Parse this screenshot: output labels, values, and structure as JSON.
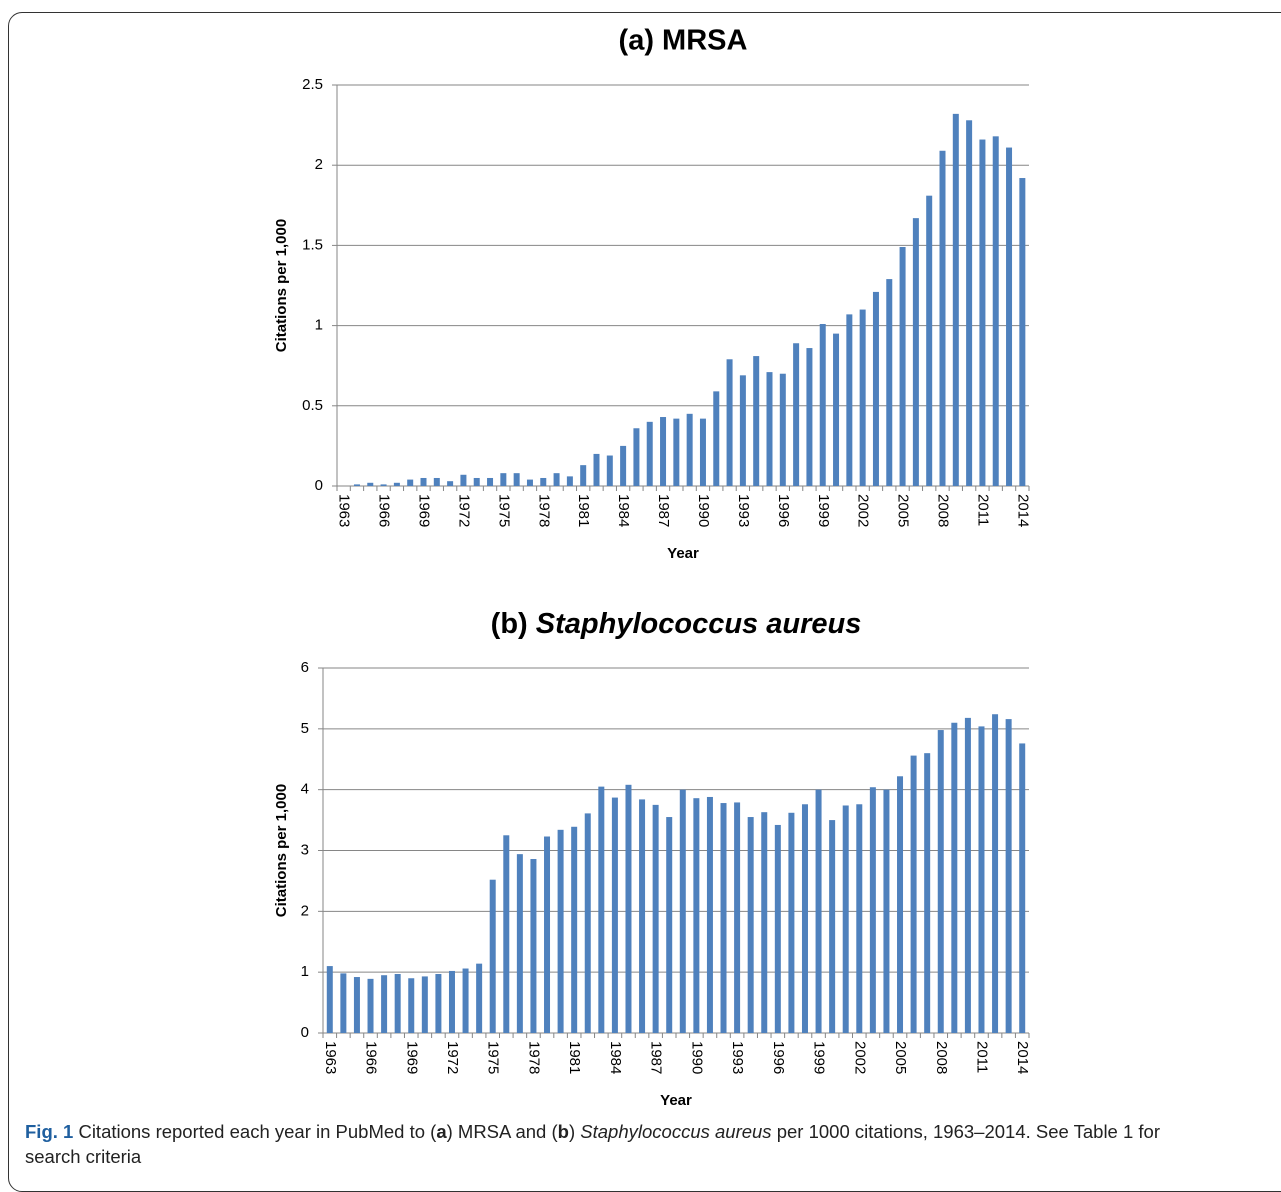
{
  "chart_data": [
    {
      "type": "bar",
      "title": "(a) MRSA",
      "x_label": "Year",
      "y_label": "Citations per 1,000",
      "color": "#4f81bd",
      "grid": true,
      "categories": [
        "1963",
        null,
        null,
        "1966",
        null,
        null,
        "1969",
        null,
        null,
        "1972",
        null,
        null,
        "1975",
        null,
        null,
        "1978",
        null,
        null,
        "1981",
        null,
        null,
        "1984",
        null,
        null,
        "1987",
        null,
        null,
        "1990",
        null,
        null,
        "1993",
        null,
        null,
        "1996",
        null,
        null,
        "1999",
        null,
        null,
        "2002",
        null,
        null,
        "2005",
        null,
        null,
        "2008",
        null,
        null,
        "2011",
        null,
        null,
        "2014"
      ],
      "values": [
        0,
        0.01,
        0.02,
        0.01,
        0.02,
        0.04,
        0.05,
        0.05,
        0.03,
        0.07,
        0.05,
        0.05,
        0.08,
        0.08,
        0.04,
        0.05,
        0.08,
        0.06,
        0.13,
        0.2,
        0.19,
        0.25,
        0.36,
        0.4,
        0.43,
        0.42,
        0.45,
        0.42,
        0.59,
        0.79,
        0.69,
        0.81,
        0.71,
        0.7,
        0.89,
        0.86,
        1.01,
        0.95,
        1.07,
        1.1,
        1.21,
        1.29,
        1.49,
        1.67,
        1.81,
        2.09,
        2.32,
        2.28,
        2.16,
        2.18,
        2.11,
        1.92
      ],
      "ylim": [
        0,
        2.5
      ],
      "yticks": [
        0,
        0.5,
        1,
        1.5,
        2,
        2.5
      ]
    },
    {
      "type": "bar",
      "title": "(b) Staphylococcus aureus",
      "x_label": "Year",
      "y_label": "Citations per 1,000",
      "color": "#4f81bd",
      "grid": true,
      "categories": [
        "1963",
        null,
        null,
        "1966",
        null,
        null,
        "1969",
        null,
        null,
        "1972",
        null,
        null,
        "1975",
        null,
        null,
        "1978",
        null,
        null,
        "1981",
        null,
        null,
        "1984",
        null,
        null,
        "1987",
        null,
        null,
        "1990",
        null,
        null,
        "1993",
        null,
        null,
        "1996",
        null,
        null,
        "1999",
        null,
        null,
        "2002",
        null,
        null,
        "2005",
        null,
        null,
        "2008",
        null,
        null,
        "2011",
        null,
        null,
        "2014"
      ],
      "values": [
        1.1,
        0.98,
        0.92,
        0.89,
        0.95,
        0.97,
        0.9,
        0.93,
        0.97,
        1.02,
        1.06,
        1.14,
        2.52,
        3.25,
        2.94,
        2.86,
        3.23,
        3.34,
        3.39,
        3.61,
        4.05,
        3.87,
        4.08,
        3.84,
        3.75,
        3.55,
        4.0,
        3.86,
        3.88,
        3.78,
        3.79,
        3.55,
        3.63,
        3.42,
        3.62,
        3.76,
        4.0,
        3.5,
        3.74,
        3.76,
        4.04,
        4.0,
        4.22,
        4.56,
        4.6,
        4.98,
        5.1,
        5.18,
        5.04,
        5.24,
        5.16,
        4.76
      ],
      "ylim": [
        0,
        6
      ],
      "yticks": [
        0,
        1,
        2,
        3,
        4,
        5,
        6
      ]
    }
  ],
  "caption": [
    {
      "text": "Fig. 1",
      "style": "bold-blue"
    },
    {
      "text": " Citations reported each year in PubMed to (",
      "style": "normal"
    },
    {
      "text": "a",
      "style": "bold"
    },
    {
      "text": ") MRSA and (",
      "style": "normal"
    },
    {
      "text": "b",
      "style": "bold"
    },
    {
      "text": ") ",
      "style": "normal"
    },
    {
      "text": "Staphylococcus aureus",
      "style": "italic"
    },
    {
      "text": " per 1000 citations, 1963–2014. See Table 1 for search criteria",
      "style": "normal"
    }
  ]
}
